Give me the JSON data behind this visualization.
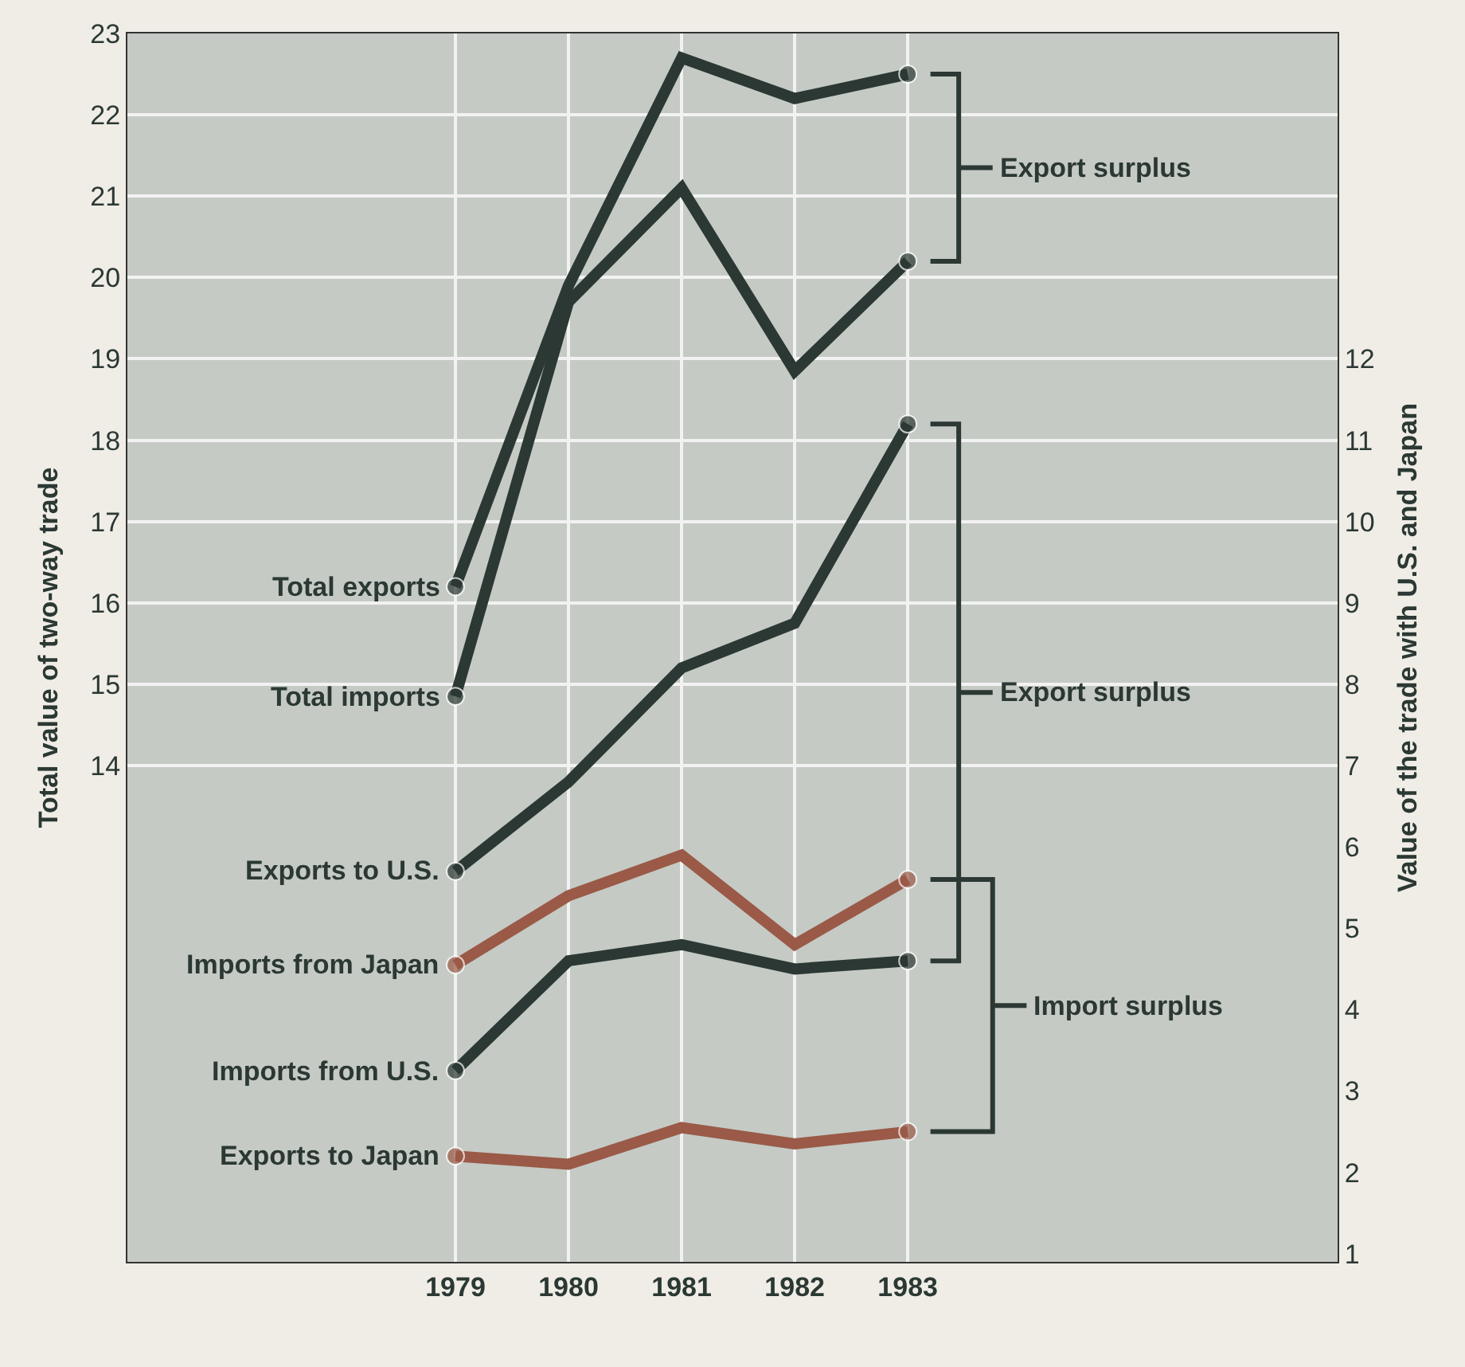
{
  "chart_data": {
    "type": "line",
    "xlabel": null,
    "ylabel": "Total value of two-way trade",
    "y2label": "Value of the trade with U.S. and Japan",
    "x": [
      1979,
      1980,
      1981,
      1982,
      1983
    ],
    "xlim": [
      1976.1,
      1986.8
    ],
    "xticks": [
      1979,
      1980,
      1981,
      1982,
      1983
    ],
    "ylim": [
      7.9,
      23
    ],
    "yticks": [
      14,
      15,
      16,
      17,
      18,
      19,
      20,
      21,
      22,
      23
    ],
    "y2lim": [
      0.9,
      16
    ],
    "y2ticks": [
      1,
      2,
      3,
      4,
      5,
      6,
      7,
      8,
      9,
      10,
      11,
      12
    ],
    "grid": true,
    "legend": false,
    "series": [
      {
        "name": "Total exports",
        "color": "#2b3833",
        "values": [
          16.2,
          19.9,
          22.7,
          22.2,
          22.5
        ]
      },
      {
        "name": "Total imports",
        "color": "#2b3833",
        "values": [
          14.85,
          19.7,
          21.1,
          18.85,
          20.2
        ]
      },
      {
        "name": "Exports to U.S.",
        "color": "#2b3833",
        "axis": "y2",
        "values": [
          5.7,
          6.8,
          8.2,
          8.75,
          11.2
        ]
      },
      {
        "name": "Imports from Japan",
        "color": "#9a5a47",
        "axis": "y2",
        "values": [
          4.55,
          5.4,
          5.9,
          4.8,
          5.6
        ]
      },
      {
        "name": "Imports from U.S.",
        "color": "#2b3833",
        "axis": "y2",
        "values": [
          3.25,
          4.6,
          4.8,
          4.5,
          4.6
        ]
      },
      {
        "name": "Exports to Japan",
        "color": "#9a5a47",
        "axis": "y2",
        "values": [
          2.2,
          2.1,
          2.55,
          2.35,
          2.5
        ]
      }
    ],
    "annotations": [
      "Export surplus",
      "Export surplus",
      "Import surplus"
    ]
  }
}
